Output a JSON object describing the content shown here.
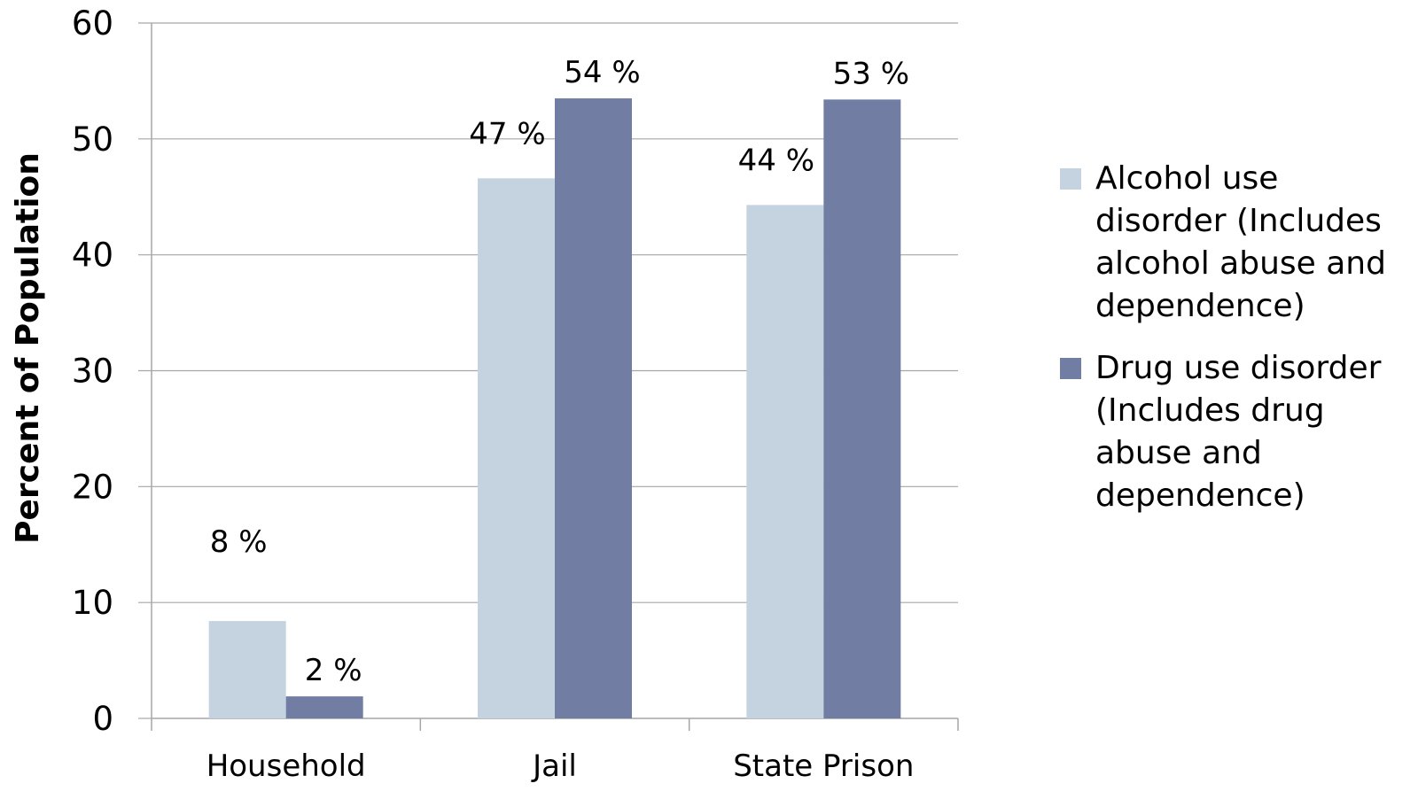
{
  "chart_data": {
    "type": "bar",
    "categories": [
      "Household",
      "Jail",
      "State Prison"
    ],
    "ylabel": "Percent of Population",
    "xlabel": "",
    "title": "",
    "ylim": [
      0,
      60
    ],
    "yticks": [
      0,
      10,
      20,
      30,
      40,
      50,
      60
    ],
    "grid": true,
    "legend_position": "right",
    "series": [
      {
        "name": "Alcohol use disorder (Includes alcohol abuse and dependence)",
        "values": [
          8.4,
          46.6,
          44.3
        ],
        "labels": [
          "8 %",
          "47 %",
          "44 %"
        ],
        "color": "#c5d3e0"
      },
      {
        "name": "Drug use disorder (Includes drug abuse and dependence)",
        "values": [
          1.9,
          53.5,
          53.4
        ],
        "labels": [
          "2 %",
          "54 %",
          "53 %"
        ],
        "color": "#727da3"
      }
    ]
  }
}
